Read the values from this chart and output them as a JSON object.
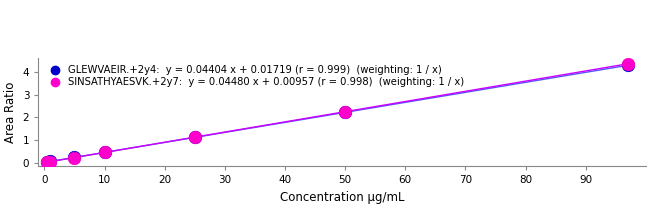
{
  "title": "",
  "xlabel": "Concentration µg/mL",
  "ylabel": "Area Ratio",
  "xlim": [
    -1,
    100
  ],
  "ylim": [
    -0.15,
    4.6
  ],
  "xticks": [
    0,
    10,
    20,
    30,
    40,
    50,
    60,
    70,
    80,
    90
  ],
  "yticks": [
    0,
    1,
    2,
    3,
    4
  ],
  "figure_bg_color": "#ffffff",
  "plot_bg_color": "#ffffff",
  "series": [
    {
      "name": "GLEWVAEIR.+2y4",
      "legend_label": "GLEWVAEIR.+2y4:  y = 0.04404 x + 0.01719 (r = 0.999)  (weighting: 1 / x)",
      "slope": 0.04404,
      "intercept": 0.01719,
      "x_points": [
        0.5,
        1.0,
        5.0,
        10.0,
        25.0,
        50.0,
        97.0
      ],
      "marker_color": "#0000cc",
      "line_color": "#5555ff",
      "marker": "o",
      "markersize": 9,
      "linewidth": 1.0,
      "zorder_line": 2,
      "zorder_marker": 4
    },
    {
      "name": "SINSATHYAESVK.+2y7",
      "legend_label": "SINSATHYAESVK.+2y7:  y = 0.04480 x + 0.00957 (r = 0.998)  (weighting: 1 / x)",
      "slope": 0.0448,
      "intercept": 0.00957,
      "x_points": [
        0.5,
        1.0,
        5.0,
        10.0,
        25.0,
        50.0,
        97.0
      ],
      "marker_color": "#ff00cc",
      "line_color": "#cc00ff",
      "marker": "o",
      "markersize": 9,
      "linewidth": 1.0,
      "zorder_line": 3,
      "zorder_marker": 5
    }
  ],
  "legend_fontsize": 7.2,
  "axis_label_fontsize": 8.5,
  "tick_fontsize": 7.5,
  "spine_color": "#888888",
  "spine_linewidth": 0.8
}
